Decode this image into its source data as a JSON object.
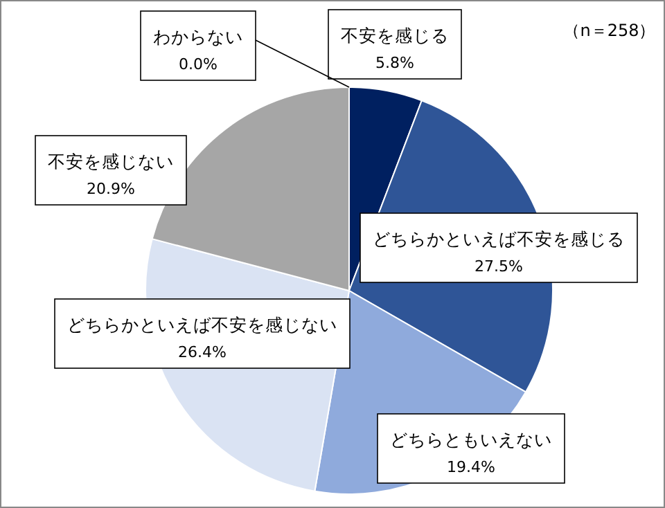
{
  "chart_data": {
    "type": "pie",
    "categories": [
      "不安を感じる",
      "どちらかといえば不安を感じる",
      "どちらともいえない",
      "どちらかといえば不安を感じない",
      "不安を感じない",
      "わからない"
    ],
    "values": [
      5.8,
      27.5,
      19.4,
      26.4,
      20.9,
      0.0
    ],
    "value_labels": [
      "5.8%",
      "27.5%",
      "19.4%",
      "26.4%",
      "20.9%",
      "0.0%"
    ],
    "colors": [
      "#002060",
      "#2f5597",
      "#8faadc",
      "#dae3f3",
      "#a6a6a6",
      null
    ],
    "annotations": [
      "（n＝258）"
    ]
  }
}
